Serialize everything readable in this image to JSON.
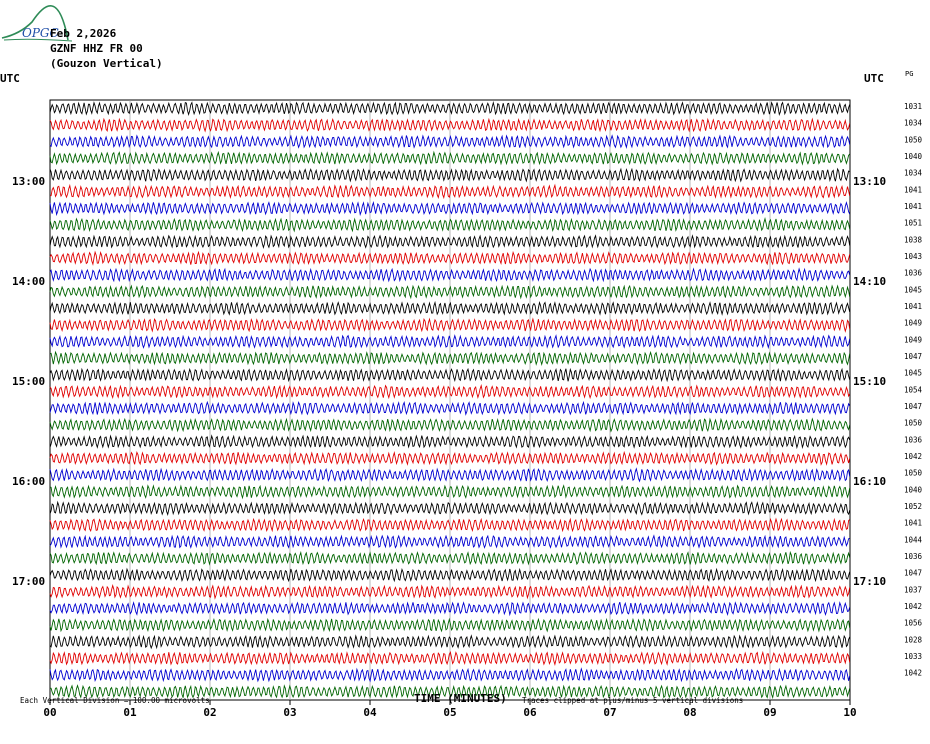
{
  "header": {
    "logo_text": "OPGC",
    "date": "Feb 2,2026",
    "station": "GZNF HHZ FR 00",
    "location": "(Gouzon Vertical)"
  },
  "axis": {
    "left_label": "UTC",
    "right_label": "UTC",
    "right_corner_label": "PG",
    "left_hours": [
      "13:00",
      "14:00",
      "15:00",
      "16:00",
      "17:00"
    ],
    "right_hours": [
      "13:10",
      "14:10",
      "15:10",
      "16:10",
      "17:10"
    ],
    "x_ticks": [
      "00",
      "01",
      "02",
      "03",
      "04",
      "05",
      "06",
      "07",
      "08",
      "09",
      "10"
    ],
    "xlabel": "TIME (MINUTES)"
  },
  "footer": {
    "scale": "Each Vertical Division =  100.00 microvolts",
    "clip": "Traces clipped at plus/minus 5 vertical divisions"
  },
  "chart_data": {
    "type": "line",
    "title": "",
    "xlabel": "TIME (MINUTES)",
    "ylabel": "UTC",
    "xlim": [
      0,
      10
    ],
    "trace_count": 36,
    "trace_minutes": 10,
    "first_labeled_row": 6,
    "rows_per_hour": 6,
    "colors": [
      "#000000",
      "#e00000",
      "#0000d0",
      "#006400"
    ],
    "grid": "vertical lines every minute",
    "right_values": [
      "1031",
      "1034",
      "1050",
      "1040",
      "1034",
      "1041",
      "1041",
      "1051",
      "1038",
      "1043",
      "1036",
      "1045",
      "1041",
      "1049",
      "1049",
      "1047",
      "1045",
      "1054",
      "1047",
      "1050",
      "1036",
      "1042",
      "1050",
      "1040",
      "1052",
      "1041",
      "1044",
      "1036",
      "1047",
      "1037",
      "1042",
      "1056",
      "1028",
      "1033",
      "1042"
    ]
  }
}
